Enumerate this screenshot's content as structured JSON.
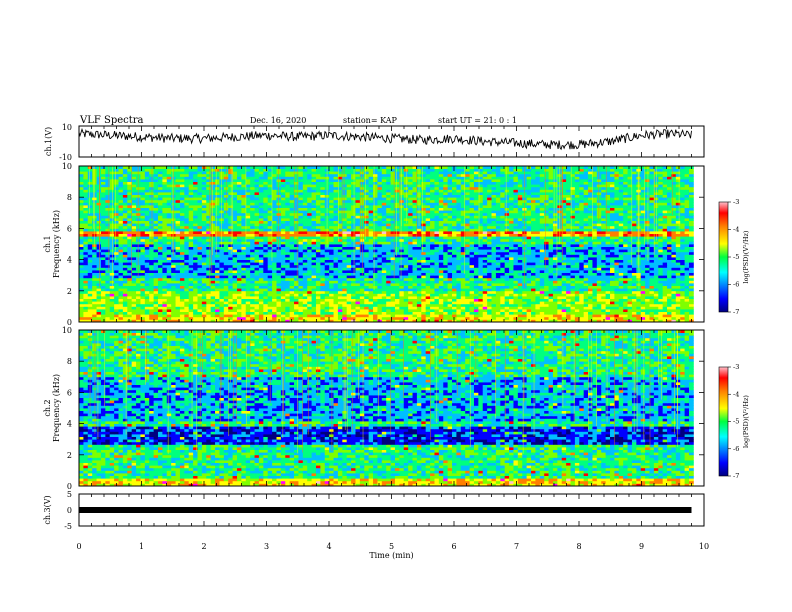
{
  "header": {
    "title": "VLF Spectra",
    "date": "Dec. 16, 2020",
    "station": "station= KAP",
    "start": "start UT =  21: 0 : 1"
  },
  "colors": {
    "colormap": [
      "#00007f",
      "#0000ff",
      "#00bfff",
      "#00ff7f",
      "#7fff00",
      "#ffff00",
      "#ff7f00",
      "#ff0000",
      "#ff00ff",
      "#ffc0cb"
    ],
    "waveform": "#000000"
  },
  "chart_data": [
    {
      "type": "line",
      "id": "ch1-waveform",
      "ylabel": "ch.1(V)",
      "ylim": [
        -10,
        10
      ],
      "yticks": [
        "10",
        "-10"
      ],
      "xlim": [
        0,
        10
      ],
      "note_shape": "noisy waveform ~0..+8 V, lower 4.8-9 min",
      "x": [
        0,
        0.5,
        1,
        1.5,
        2,
        2.5,
        3,
        3.5,
        4,
        4.5,
        5,
        5.5,
        6,
        6.5,
        7,
        7.5,
        8,
        8.5,
        9,
        9.5,
        9.8
      ],
      "values": [
        5,
        4,
        3,
        2,
        2,
        3,
        4,
        3,
        4,
        3,
        2,
        1,
        2,
        0,
        -1,
        -2,
        -2,
        0,
        4,
        5,
        4
      ]
    },
    {
      "type": "heatmap",
      "id": "ch1-spectrogram",
      "ylabel": "ch.1\nFrequency (kHz)",
      "ylabel_lines": [
        "ch.1",
        "Frequency (kHz)"
      ],
      "ylim": [
        0,
        10
      ],
      "yticks": [
        "0",
        "2",
        "4",
        "6",
        "8",
        "10"
      ],
      "xlim": [
        0,
        10
      ],
      "colorbar": {
        "label": "log(PSD)(V²/Hz)",
        "range": [
          -7,
          -3
        ],
        "ticks": [
          "-3",
          "-4",
          "-5",
          "-6",
          "-7"
        ]
      }
    },
    {
      "type": "heatmap",
      "id": "ch2-spectrogram",
      "ylabel_lines": [
        "ch.2",
        "Frequency (kHz)"
      ],
      "ylim": [
        0,
        10
      ],
      "yticks": [
        "0",
        "2",
        "4",
        "6",
        "8",
        "10"
      ],
      "xlim": [
        0,
        10
      ],
      "colorbar": {
        "label": "log(PSD)(V²/Hz)",
        "range": [
          -7,
          -3
        ],
        "ticks": [
          "-3",
          "-4",
          "-5",
          "-6",
          "-7"
        ]
      }
    },
    {
      "type": "line",
      "id": "ch3-waveform",
      "ylabel": "ch.3(V)",
      "ylim": [
        -5,
        5
      ],
      "yticks": [
        "5",
        "0",
        "-5"
      ],
      "xlim": [
        0,
        10
      ],
      "xticks": [
        "0",
        "1",
        "2",
        "3",
        "4",
        "5",
        "6",
        "7",
        "8",
        "9",
        "10"
      ],
      "xlabel": "Time (min)",
      "x": [
        0,
        9.8
      ],
      "values": [
        0,
        0
      ]
    }
  ]
}
